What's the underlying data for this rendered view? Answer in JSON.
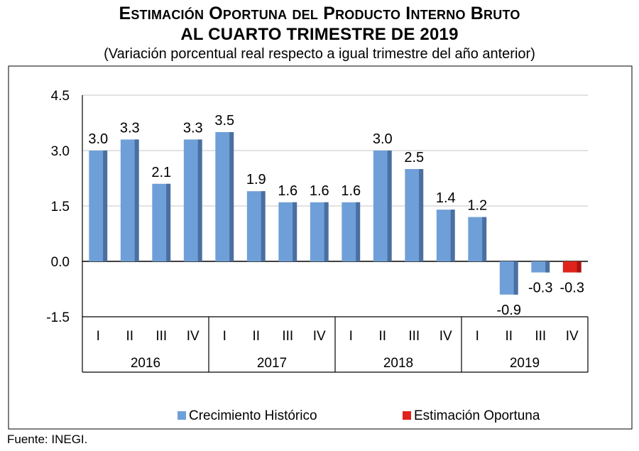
{
  "title": {
    "line1": "Estimación Oportuna del Producto Interno Bruto",
    "line2": "AL CUARTO TRIMESTRE DE 2019",
    "subtitle": "(Variación porcentual real respecto a igual trimestre del año anterior)"
  },
  "footer": "Fuente: INEGI.",
  "colors": {
    "historico": "#6f9fd8",
    "historico_side": "#4a6fa0",
    "oportuna": "#e0231b",
    "oportuna_side": "#a8140f",
    "grid": "#d9d9d9"
  },
  "chart_data": {
    "type": "bar",
    "groups": [
      {
        "year": "2016",
        "quarters": [
          "I",
          "II",
          "III",
          "IV"
        ]
      },
      {
        "year": "2017",
        "quarters": [
          "I",
          "II",
          "III",
          "IV"
        ]
      },
      {
        "year": "2018",
        "quarters": [
          "I",
          "II",
          "III",
          "IV"
        ]
      },
      {
        "year": "2019",
        "quarters": [
          "I",
          "II",
          "III",
          "IV"
        ]
      }
    ],
    "series": [
      {
        "name": "Crecimiento  Histórico",
        "values": [
          3.0,
          3.3,
          2.1,
          3.3,
          3.5,
          1.9,
          1.6,
          1.6,
          1.6,
          3.0,
          2.5,
          1.4,
          1.2,
          -0.9,
          -0.3,
          null
        ]
      },
      {
        "name": "Estimación Oportuna",
        "values": [
          null,
          null,
          null,
          null,
          null,
          null,
          null,
          null,
          null,
          null,
          null,
          null,
          null,
          null,
          null,
          -0.3
        ]
      }
    ],
    "data_labels": [
      "3.0",
      "3.3",
      "2.1",
      "3.3",
      "3.5",
      "1.9",
      "1.6",
      "1.6",
      "1.6",
      "3.0",
      "2.5",
      "1.4",
      "1.2",
      "-0.9",
      "-0.3",
      "-0.3"
    ],
    "y_ticks": [
      "4.5",
      "3.0",
      "1.5",
      "0.0",
      "-1.5"
    ],
    "ylim": [
      -1.5,
      4.5
    ],
    "grid": true,
    "legend_position": "bottom"
  }
}
